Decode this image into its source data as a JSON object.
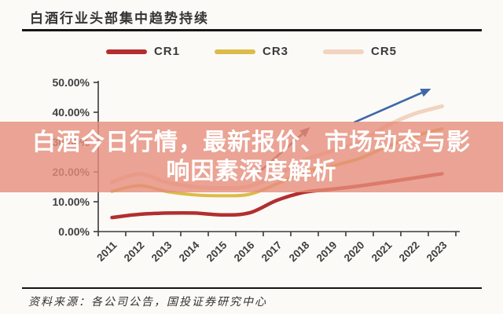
{
  "header": {
    "title": "白酒行业头部集中趋势持续"
  },
  "legend": [
    {
      "label": "CR1",
      "color": "#b22f2f"
    },
    {
      "label": "CR3",
      "color": "#ddbb4a"
    },
    {
      "label": "CR5",
      "color": "#f2d3bf"
    }
  ],
  "overlay": {
    "text_line1": "白酒今日行情，最新报价、市场动态与影",
    "text_line2": "响因素深度解析",
    "background_color": "rgba(230,141,122,0.8)"
  },
  "footer": {
    "source": "资料来源：各公司公告，国投证券研究中心"
  },
  "chart_data": {
    "type": "line",
    "title": "白酒行业头部集中趋势持续",
    "categories": [
      "2011",
      "2012",
      "2013",
      "2014",
      "2015",
      "2016",
      "2017",
      "2018",
      "2019",
      "2020",
      "2021",
      "2022",
      "2023"
    ],
    "series": [
      {
        "name": "CR1",
        "color": "#b22f2f",
        "stroke_width": 4.5,
        "values": [
          4.7,
          5.8,
          6.2,
          6.2,
          5.6,
          6.3,
          10.5,
          13.2,
          14.2,
          15.3,
          16.6,
          18.0,
          19.4
        ]
      },
      {
        "name": "CR3",
        "color": "#ddbb4a",
        "stroke_width": 4,
        "values": [
          13.5,
          15.4,
          13.4,
          12.3,
          12.0,
          12.5,
          16.0,
          20.0,
          22.0,
          24.5,
          28.5,
          32.0,
          34.5
        ]
      },
      {
        "name": "CR5",
        "color": "#f2d3bf",
        "stroke_width": 5,
        "values": [
          16.6,
          19.3,
          16.5,
          15.0,
          14.6,
          15.2,
          19.0,
          24.0,
          27.0,
          30.0,
          35.5,
          39.5,
          42.0
        ]
      }
    ],
    "unit": "percent",
    "ylim": [
      0,
      50
    ],
    "yticks": [
      {
        "value": 0,
        "label": "0.00%"
      },
      {
        "value": 10,
        "label": "10.00%"
      },
      {
        "value": 20,
        "label": "20.00%"
      },
      {
        "value": 30,
        "label": "30.00%"
      },
      {
        "value": 40,
        "label": "40.00%"
      },
      {
        "value": 50,
        "label": "50.00%"
      }
    ],
    "grid": false,
    "legend_position": "top",
    "annotations": [
      {
        "type": "arrow",
        "name": "mid-trend-arrow",
        "color": "#7d4350",
        "from": {
          "year": 2016.2,
          "value": 18.7
        },
        "to": {
          "year": 2018.2,
          "value": 35.0
        }
      },
      {
        "type": "arrow",
        "name": "top-trend-arrow",
        "color": "#3f67a8",
        "from": {
          "year": 2019.8,
          "value": 36.6
        },
        "to": {
          "year": 2022.6,
          "value": 47.9
        }
      }
    ]
  }
}
